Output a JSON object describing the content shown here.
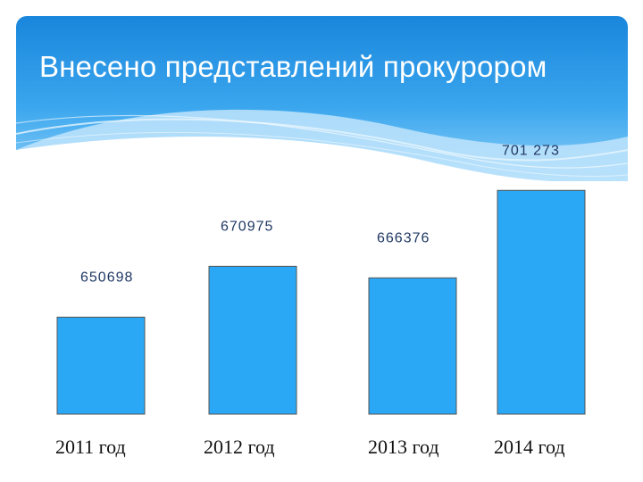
{
  "title": "Внесено представлений прокурором",
  "colors": {
    "banner": "#1e8fe0",
    "bar": "#2aa8f5",
    "bar_edge": "#555555",
    "label": "#1f3864",
    "axis_text": "#111111"
  },
  "chart_data": {
    "type": "bar",
    "title": "Внесено представлений прокурором",
    "categories": [
      "2011 год",
      "2012 год",
      "2013 год",
      "2014 год"
    ],
    "values": [
      650698,
      670975,
      666376,
      701273
    ],
    "data_labels": [
      "650698",
      "670975",
      "666376",
      "701 273"
    ],
    "xlabel": "",
    "ylabel": "",
    "ylim": [
      612000,
      706000
    ],
    "grid": false,
    "legend": "none"
  }
}
